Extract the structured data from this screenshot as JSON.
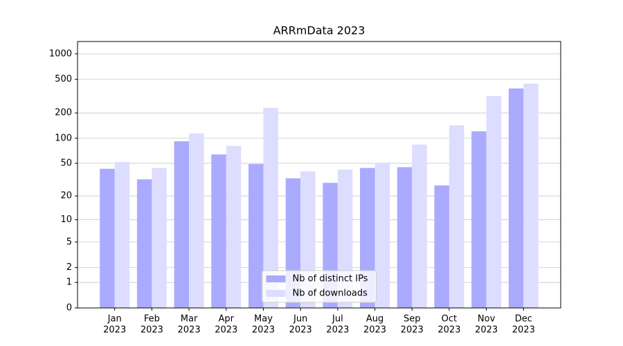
{
  "chart_data": {
    "type": "bar",
    "title": "ARRmData 2023",
    "categories": [
      [
        "Jan",
        "2023"
      ],
      [
        "Feb",
        "2023"
      ],
      [
        "Mar",
        "2023"
      ],
      [
        "Apr",
        "2023"
      ],
      [
        "May",
        "2023"
      ],
      [
        "Jun",
        "2023"
      ],
      [
        "Jul",
        "2023"
      ],
      [
        "Aug",
        "2023"
      ],
      [
        "Sep",
        "2023"
      ],
      [
        "Oct",
        "2023"
      ],
      [
        "Nov",
        "2023"
      ],
      [
        "Dec",
        "2023"
      ]
    ],
    "series": [
      {
        "name": "Nb of distinct IPs",
        "color": "#aaaaff",
        "values": [
          43,
          32,
          92,
          64,
          49,
          33,
          29,
          44,
          45,
          27,
          121,
          390
        ]
      },
      {
        "name": "Nb of downloads",
        "color": "#ddddff",
        "values": [
          52,
          44,
          114,
          81,
          230,
          40,
          42,
          51,
          84,
          143,
          317,
          445
        ]
      }
    ],
    "yscale": "log1p",
    "ylim": [
      0,
      1400
    ],
    "yticks": [
      0,
      1,
      2,
      5,
      10,
      20,
      50,
      100,
      200,
      500,
      1000
    ],
    "grid": true,
    "legend": "lower center"
  }
}
